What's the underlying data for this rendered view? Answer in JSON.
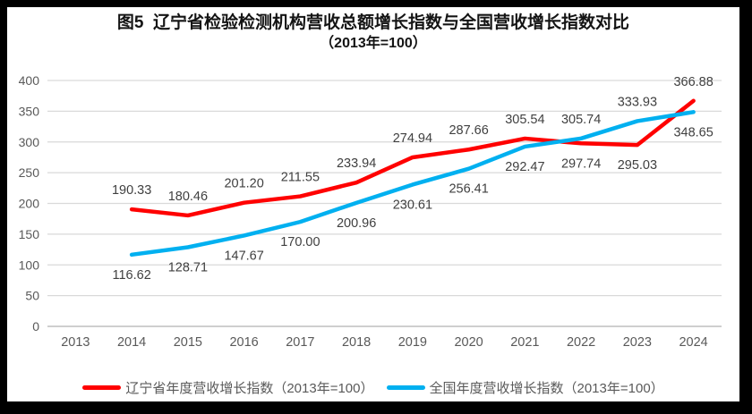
{
  "figure": {
    "border_color": "#000000",
    "background": "#FFFFFF"
  },
  "title": {
    "line1": "图5  辽宁省检验检测机构营收总额增长指数与全国营收增长指数对比",
    "line2": "（2013年=100）"
  },
  "chart_data": {
    "type": "line",
    "title": "图5 辽宁省检验检测机构营收总额增长指数与全国营收增长指数对比（2013年=100）",
    "categories": [
      "2013",
      "2014",
      "2015",
      "2016",
      "2017",
      "2018",
      "2019",
      "2020",
      "2021",
      "2022",
      "2023",
      "2024"
    ],
    "series": [
      {
        "name": "辽宁省年度营收增长指数（2013年=100）",
        "color": "#FF0000",
        "values": [
          null,
          190.33,
          180.46,
          201.2,
          211.55,
          233.94,
          274.94,
          287.66,
          305.54,
          297.74,
          295.03,
          366.88
        ],
        "label_positions": [
          null,
          "above",
          "above",
          "above",
          "above",
          "above",
          "above",
          "above",
          "above",
          "below",
          "below",
          "above"
        ]
      },
      {
        "name": "全国年度营收增长指数（2013年=100）",
        "color": "#00B0F0",
        "values": [
          null,
          116.62,
          128.71,
          147.67,
          170.0,
          200.96,
          230.61,
          256.41,
          292.47,
          305.74,
          333.93,
          348.65
        ],
        "label_positions": [
          null,
          "below",
          "below",
          "below",
          "below",
          "below",
          "below",
          "below",
          "below",
          "above",
          "above",
          "below"
        ]
      }
    ],
    "ylim": [
      0,
      400
    ],
    "y_ticks": [
      0,
      50,
      100,
      150,
      200,
      250,
      300,
      350,
      400
    ],
    "grid": true,
    "legend_position": "bottom",
    "colors": {
      "grid": "#D9D9D9",
      "axis": "#BFBFBF",
      "tick_label": "#595959",
      "data_label": "#404040"
    }
  }
}
